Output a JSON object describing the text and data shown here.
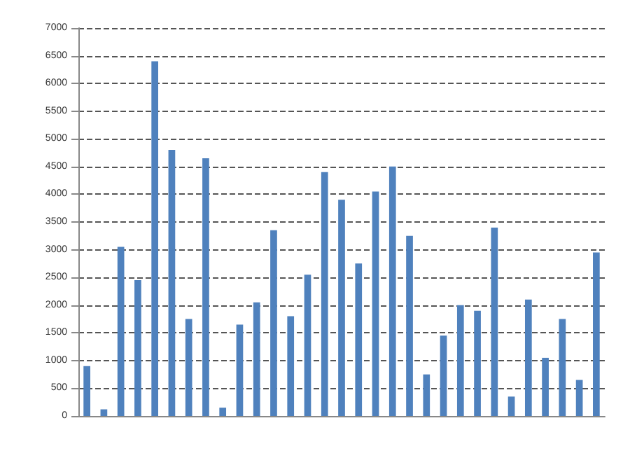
{
  "chart_data": {
    "type": "bar",
    "categories": [
      null,
      null,
      null,
      null,
      null,
      null,
      null,
      null,
      null,
      null,
      null,
      null,
      null,
      null,
      null,
      null,
      null,
      null,
      null,
      null,
      null,
      null,
      null,
      null,
      null,
      null,
      null,
      null,
      null,
      null,
      null
    ],
    "series": [
      {
        "color": "#4f81bd",
        "values": [
          900,
          120,
          3050,
          2450,
          6400,
          4800,
          1750,
          4650,
          150,
          1650,
          2050,
          3350,
          1800,
          2550,
          4400,
          3900,
          2750,
          4050,
          4500,
          3250,
          750,
          1450,
          2000,
          1900,
          3400,
          350,
          2100,
          1050,
          1750,
          650,
          2950
        ]
      }
    ],
    "ylim": [
      0,
      7000
    ],
    "yticks": [
      0,
      500,
      1000,
      1500,
      2000,
      2500,
      3000,
      3500,
      4000,
      4500,
      5000,
      5500,
      6000,
      6500,
      7000
    ],
    "grid": "y"
  }
}
